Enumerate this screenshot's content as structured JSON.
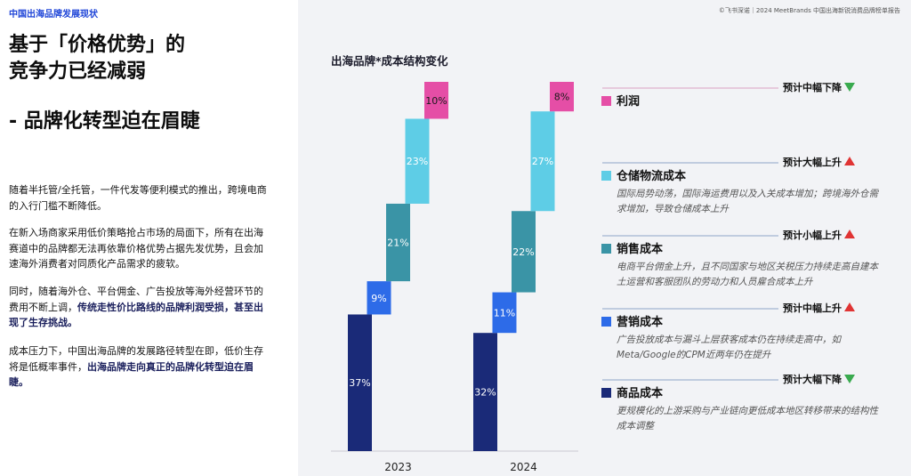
{
  "header": {
    "section": "中国出海品牌发展现状",
    "source": "©飞书深诺｜2024 MeetBrands 中国出海新锐消费品牌榜单报告"
  },
  "headline": {
    "line1": "基于「价格优势」的",
    "line2": "竞争力已经减弱",
    "line3": "- 品牌化转型迫在眉睫"
  },
  "paragraphs": {
    "p1": "随着半托管/全托管，一件代发等便利模式的推出，跨境电商的入行门槛不断降低。",
    "p2": "在新入场商家采用低价策略抢占市场的局面下，所有在出海赛道中的品牌都无法再依靠价格优势占据先发优势，且会加速海外消费者对同质化产品需求的疲软。",
    "p3_pre": "同时，随着海外仓、平台佣金、广告投放等海外经营环节的费用不断上调，",
    "p3_bold": "传统走性价比路线的品牌利润受损，甚至出现了生存挑战。",
    "p4_pre": "成本压力下，中国出海品牌的发展路径转型在即，低价生存将是低概率事件，",
    "p4_bold": "出海品牌走向真正的品牌化转型迫在眉睫。"
  },
  "legend_items": [
    {
      "label": "利润",
      "trend": "预计中幅下降",
      "direction": "down",
      "desc": ""
    },
    {
      "label": "仓储物流成本",
      "trend": "预计大幅上升",
      "direction": "up",
      "desc": "国际局势动荡，国际海运费用以及入关成本增加；跨境海外仓需求增加，导致仓储成本上升"
    },
    {
      "label": "销售成本",
      "trend": "预计小幅上升",
      "direction": "up",
      "desc": "电商平台佣金上升，且不同国家与地区关税压力持续走高自建本土运营和客服团队的劳动力和人员雇合成本上升"
    },
    {
      "label": "营销成本",
      "trend": "预计中幅上升",
      "direction": "up",
      "desc": "广告投放成本与漏斗上层获客成本仍在持续走高中，如Meta/Google的CPM近两年仍在提升"
    },
    {
      "label": "商品成本",
      "trend": "预计大幅下降",
      "direction": "down",
      "desc": "更规模化的上游采购与产业链向更低成本地区转移带来的结构性成本调整"
    }
  ],
  "chart_data": {
    "type": "bar",
    "title": "出海品牌*成本结构变化",
    "subtype": "stacked-waterfall",
    "categories": [
      "2023",
      "2024"
    ],
    "series": [
      {
        "name": "商品成本",
        "values": [
          37,
          32
        ],
        "color": "#1a2a78"
      },
      {
        "name": "营销成本",
        "values": [
          9,
          11
        ],
        "color": "#2d6be8"
      },
      {
        "name": "销售成本",
        "values": [
          21,
          22
        ],
        "color": "#3a94a6"
      },
      {
        "name": "仓储物流成本",
        "values": [
          23,
          27
        ],
        "color": "#5ecde6"
      },
      {
        "name": "利润",
        "values": [
          10,
          8
        ],
        "color": "#e54ea6"
      }
    ],
    "value_labels": [
      [
        "37%",
        "9%",
        "21%",
        "23%",
        "10%"
      ],
      [
        "32%",
        "11%",
        "22%",
        "27%",
        "8%"
      ]
    ],
    "ylim": [
      0,
      100
    ]
  }
}
